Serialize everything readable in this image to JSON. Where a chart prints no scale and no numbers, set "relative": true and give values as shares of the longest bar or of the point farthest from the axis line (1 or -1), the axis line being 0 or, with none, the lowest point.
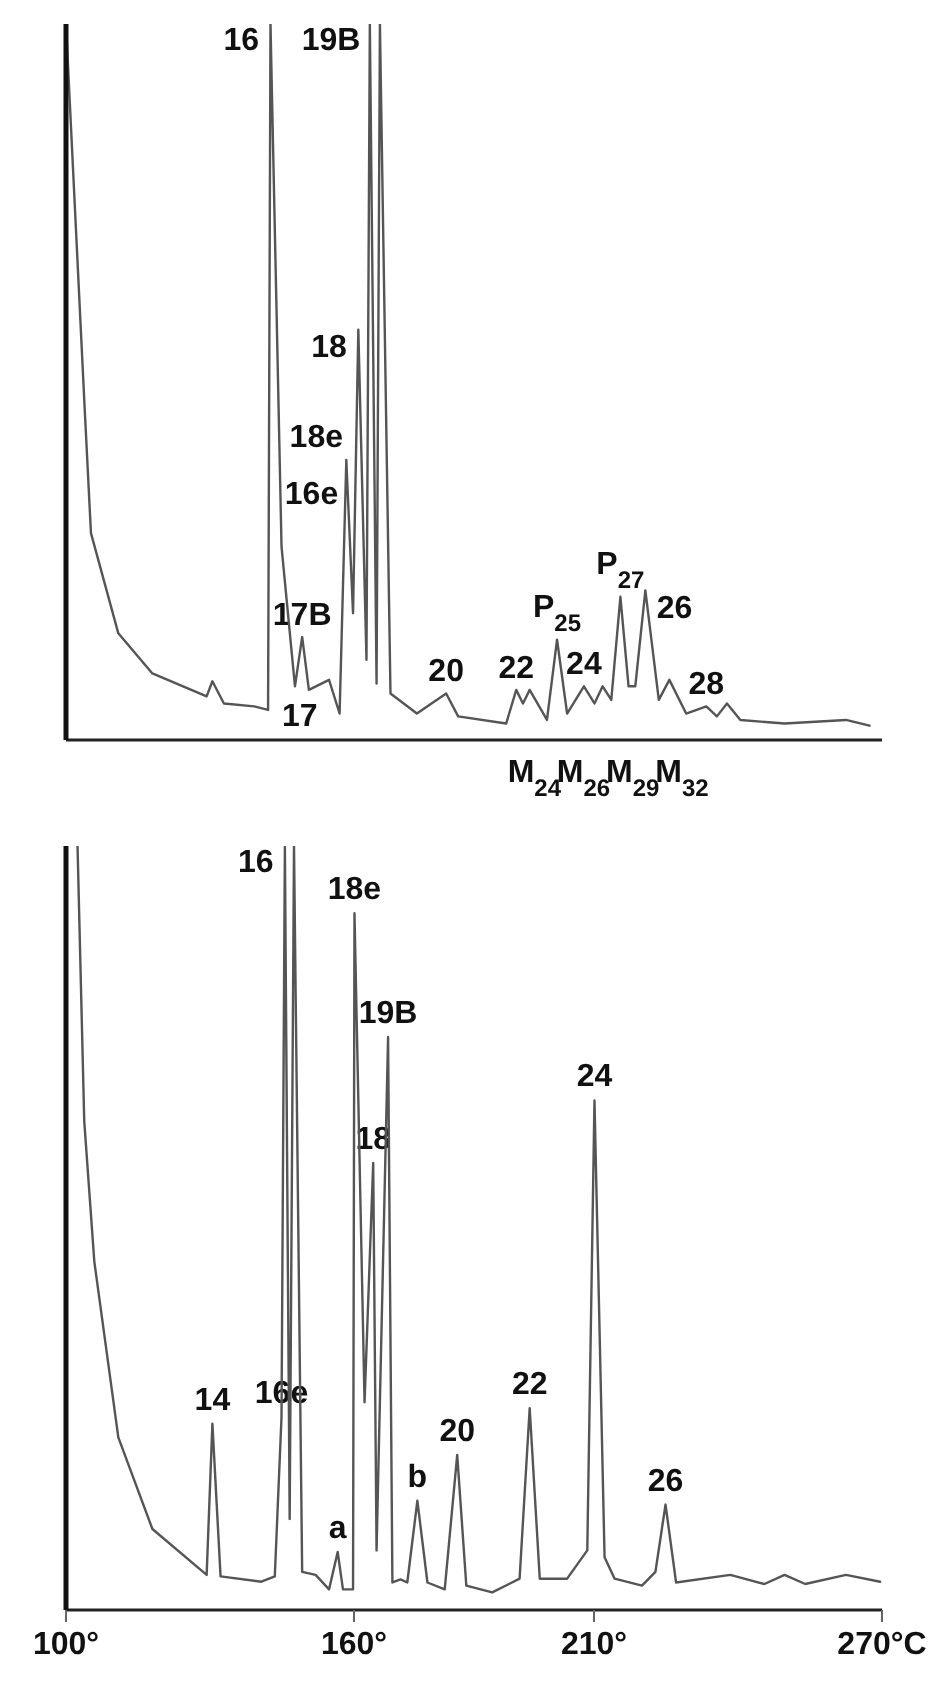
{
  "chart_data": [
    {
      "type": "line",
      "relative": true,
      "color": "#555555",
      "xlim": [
        100,
        270
      ],
      "tick_labels": false,
      "x": [
        100,
        103.8,
        105.2,
        110.9,
        118,
        129.3,
        130.5,
        132.9,
        139.2,
        142.1,
        142.6,
        144.9,
        147.7,
        149.2,
        150.6,
        154.8,
        157,
        158.4,
        159.8,
        160.9,
        162.6,
        163.3,
        164.7,
        165.4,
        167.6,
        173.1,
        179.2,
        181.7,
        191.7,
        193.8,
        195.2,
        196.6,
        200.2,
        202.3,
        204.4,
        207.9,
        210.1,
        211.8,
        213.6,
        215.5,
        217.2,
        218.6,
        220.7,
        223.5,
        225.7,
        229.2,
        233.4,
        235.6,
        237.7,
        240.5,
        249.7,
        262.5,
        267.4
      ],
      "values": [
        1,
        0.475,
        0.289,
        0.149,
        0.093,
        0.061,
        0.082,
        0.051,
        0.047,
        0.042,
        1,
        0.27,
        0.075,
        0.144,
        0.07,
        0.084,
        0.037,
        0.391,
        0.177,
        0.573,
        0.112,
        1,
        0.079,
        1,
        0.065,
        0.037,
        0.065,
        0.033,
        0.023,
        0.07,
        0.051,
        0.07,
        0.028,
        0.14,
        0.037,
        0.075,
        0.051,
        0.075,
        0.056,
        0.2,
        0.075,
        0.075,
        0.209,
        0.056,
        0.084,
        0.037,
        0.047,
        0.033,
        0.051,
        0.028,
        0.023,
        0.028,
        0.02
      ],
      "annotations": [
        {
          "text": "16",
          "x": 142.6,
          "y": 1
        },
        {
          "text": "19B",
          "x": 163.3,
          "y": 1
        },
        {
          "text": "18",
          "x": 160.9,
          "y": 0.573
        },
        {
          "text": "18e",
          "x": 158.4,
          "y": 0.391
        },
        {
          "text": "16e",
          "x": 144.9,
          "y": 0.27
        },
        {
          "text": "17B",
          "x": 149.2,
          "y": 0.144
        },
        {
          "text": "17",
          "x": 154.8,
          "y": 0.084
        },
        {
          "text": "20",
          "x": 179.2,
          "y": 0.065
        },
        {
          "text": "22",
          "x": 193.8,
          "y": 0.07
        },
        {
          "text": "P$_{25}$",
          "x": 202.3,
          "y": 0.14
        },
        {
          "text": "24",
          "x": 207.9,
          "y": 0.075
        },
        {
          "text": "P$_{27}$",
          "x": 215.5,
          "y": 0.2
        },
        {
          "text": "26",
          "x": 220.7,
          "y": 0.209
        },
        {
          "text": "28",
          "x": 233.4,
          "y": 0.047
        },
        "M$_{24}$",
        "M$_{26}$",
        "M$_{29}$",
        "M$_{32}$"
      ]
    },
    {
      "type": "line",
      "relative": true,
      "color": "#555555",
      "xlim": [
        100,
        270
      ],
      "tick_labels": "x",
      "xticks": [
        {
          "value": 100,
          "label": "100°"
        },
        {
          "value": 160,
          "label": "160°"
        },
        {
          "value": 210,
          "label": "210°"
        },
        {
          "value": 270,
          "label": "270°C"
        }
      ],
      "x": [
        102.4,
        103.8,
        105.9,
        110.9,
        118,
        129.3,
        130.5,
        132.2,
        140.7,
        143.5,
        144.9,
        145.6,
        146.6,
        147.5,
        149.2,
        152,
        154.8,
        156.6,
        157.7,
        159.8,
        160.1,
        162.2,
        164,
        164.7,
        167.1,
        168,
        169.7,
        171.1,
        173.2,
        175.3,
        178.9,
        181.5,
        183.4,
        188.8,
        194.5,
        196.6,
        198.7,
        204.4,
        208.6,
        210.1,
        212.2,
        214.3,
        220,
        222.8,
        224.9,
        227.1,
        238.4,
        245.5,
        249.7,
        254,
        262.5,
        269.6
      ],
      "values": [
        1,
        0.64,
        0.456,
        0.226,
        0.106,
        0.046,
        0.244,
        0.044,
        0.037,
        0.044,
        0.253,
        1,
        0.119,
        1,
        0.05,
        0.046,
        0.027,
        0.076,
        0.027,
        0.027,
        0.912,
        0.272,
        0.585,
        0.078,
        0.75,
        0.036,
        0.04,
        0.036,
        0.143,
        0.036,
        0.027,
        0.203,
        0.032,
        0.023,
        0.041,
        0.264,
        0.041,
        0.041,
        0.078,
        0.667,
        0.069,
        0.041,
        0.032,
        0.05,
        0.138,
        0.036,
        0.046,
        0.034,
        0.046,
        0.034,
        0.046,
        0.037
      ],
      "annotations": [
        {
          "text": "16",
          "x": 145.6,
          "y": 1
        },
        {
          "text": "18e",
          "x": 160.1,
          "y": 0.912
        },
        {
          "text": "19B",
          "x": 167.1,
          "y": 0.75
        },
        {
          "text": "24",
          "x": 210.1,
          "y": 0.667
        },
        {
          "text": "18",
          "x": 164,
          "y": 0.585
        },
        {
          "text": "14",
          "x": 130.5,
          "y": 0.244
        },
        {
          "text": "16e",
          "x": 144.9,
          "y": 0.253
        },
        {
          "text": "a",
          "x": 156.6,
          "y": 0.076
        },
        {
          "text": "b",
          "x": 173.2,
          "y": 0.143
        },
        {
          "text": "20",
          "x": 181.5,
          "y": 0.203
        },
        {
          "text": "22",
          "x": 196.6,
          "y": 0.264
        },
        {
          "text": "26",
          "x": 224.9,
          "y": 0.138
        }
      ]
    }
  ]
}
